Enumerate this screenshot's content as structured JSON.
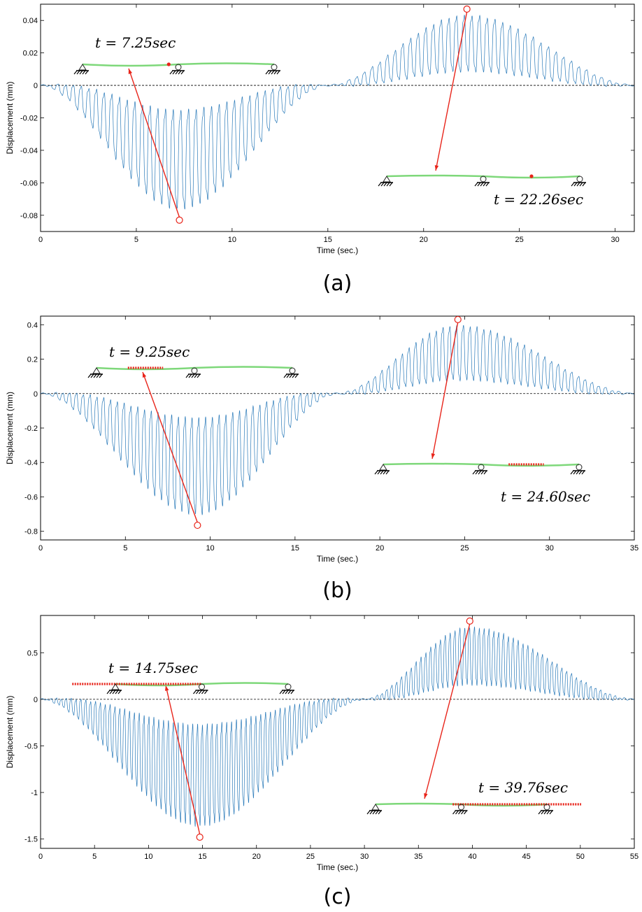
{
  "chart_data": [
    {
      "type": "line",
      "caption": "(a)",
      "xlabel": "Time (sec.)",
      "ylabel": "Displacement (mm)",
      "xlim": [
        0,
        31
      ],
      "ylim": [
        -0.09,
        0.05
      ],
      "xticks": [
        0,
        5,
        10,
        15,
        20,
        25,
        30
      ],
      "yticks": [
        -0.08,
        -0.06,
        -0.04,
        -0.02,
        0,
        0.02,
        0.04
      ],
      "ytick_labels": [
        "-0.08",
        "-0.06",
        "-0.04",
        "-0.02",
        "0",
        "0.02",
        "0.04"
      ],
      "grid": false,
      "zero_line": "dashed",
      "series": [
        {
          "name": "Displacement",
          "color": "#2a7ab9",
          "envelope": {
            "t_end": 31,
            "t_cross": 15,
            "first_peak_t": 7.25,
            "first_min": -0.083,
            "second_peak_t": 22.26,
            "second_max": 0.047,
            "osc_period": 0.4
          }
        }
      ],
      "annotations": [
        {
          "label": "t = 7.25sec",
          "time": 7.25,
          "value": -0.083,
          "snapshot_side": "top-left",
          "deformation": "mid-span point, first span",
          "red_span": [
            0.45,
            0.45
          ]
        },
        {
          "label": "t = 22.26sec",
          "time": 22.26,
          "value": 0.047,
          "snapshot_side": "bottom-right",
          "deformation": "mid-span point, second span",
          "red_span": [
            0.75,
            0.75
          ]
        }
      ]
    },
    {
      "type": "line",
      "caption": "(b)",
      "xlabel": "Time (sec.)",
      "ylabel": "Displacement (mm)",
      "xlim": [
        0,
        35
      ],
      "ylim": [
        -0.85,
        0.45
      ],
      "xticks": [
        0,
        5,
        10,
        15,
        20,
        25,
        30,
        35
      ],
      "yticks": [
        -0.8,
        -0.6,
        -0.4,
        -0.2,
        0,
        0.2,
        0.4
      ],
      "ytick_labels": [
        "-0.8",
        "-0.6",
        "-0.4",
        "-0.2",
        "0",
        "0.2",
        "0.4"
      ],
      "grid": false,
      "zero_line": "dashed",
      "series": [
        {
          "name": "Displacement",
          "color": "#2a7ab9",
          "envelope": {
            "t_end": 35,
            "t_cross": 17.5,
            "first_peak_t": 9.25,
            "first_min": -0.765,
            "second_peak_t": 24.6,
            "second_max": 0.43,
            "osc_period": 0.4
          }
        }
      ],
      "annotations": [
        {
          "label": "t = 9.25sec",
          "time": 9.25,
          "value": -0.765,
          "snapshot_side": "top-left",
          "deformation": "loaded segment, first span",
          "red_span": [
            0.16,
            0.34
          ]
        },
        {
          "label": "t = 24.60sec",
          "time": 24.6,
          "value": 0.43,
          "snapshot_side": "bottom-right",
          "deformation": "loaded segment, second span",
          "red_span": [
            0.64,
            0.82
          ]
        }
      ]
    },
    {
      "type": "line",
      "caption": "(c)",
      "xlabel": "Time (sec.)",
      "ylabel": "Displacement (mm)",
      "xlim": [
        0,
        55
      ],
      "ylim": [
        -1.6,
        0.9
      ],
      "xticks": [
        0,
        5,
        10,
        15,
        20,
        25,
        30,
        35,
        40,
        45,
        50,
        55
      ],
      "yticks": [
        -1.5,
        -1,
        -0.5,
        0,
        0.5
      ],
      "ytick_labels": [
        "-1.5",
        "-1",
        "-0.5",
        "0",
        "0.5"
      ],
      "grid": false,
      "zero_line": "dashed",
      "series": [
        {
          "name": "Displacement",
          "color": "#2a7ab9",
          "envelope": {
            "t_end": 55,
            "t_cross": 30,
            "first_peak_t": 14.75,
            "first_min": -1.48,
            "second_peak_t": 39.76,
            "second_max": 0.84,
            "osc_period": 0.45
          }
        }
      ],
      "annotations": [
        {
          "label": "t = 14.75sec",
          "time": 14.75,
          "value": -1.48,
          "snapshot_side": "top-left",
          "deformation": "long train over first span",
          "red_span": [
            -0.25,
            0.5
          ]
        },
        {
          "label": "t = 39.76sec",
          "time": 39.76,
          "value": 0.84,
          "snapshot_side": "bottom-right",
          "deformation": "long train over second span",
          "red_span": [
            0.45,
            1.2
          ]
        }
      ]
    }
  ],
  "colors": {
    "series": "#2a7ab9",
    "annotation": "#e8241a",
    "beam": "#7ed87a",
    "load": "#e8241a"
  }
}
